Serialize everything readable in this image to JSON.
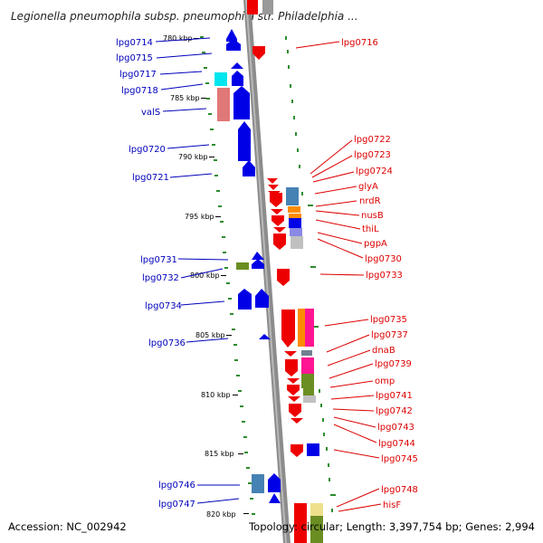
{
  "title": "Legionella pneumophila subsp. pneumophila str. Philadelphia ...",
  "footer": {
    "accession": "Accession: NC_002942",
    "topology": "Topology: circular; Length: 3,397,754 bp; Genes: 2,994"
  },
  "colors": {
    "forward_gene": "#0000e6",
    "reverse_gene": "#ee0000",
    "forward_label": "#0000bb",
    "reverse_label": "#dd0000",
    "backbone": "#888888",
    "tick": "#2e8b2e"
  },
  "scale_labels": [
    "780 kbp",
    "785 kbp",
    "790 kbp",
    "795 kbp",
    "800 kbp",
    "805 kbp",
    "810 kbp",
    "815 kbp",
    "820 kbp"
  ],
  "left_genes": [
    "lpg0714",
    "lpg0715",
    "lpg0717",
    "lpg0718",
    "valS",
    "lpg0720",
    "lpg0721",
    "lpg0731",
    "lpg0732",
    "lpg0734",
    "lpg0736",
    "lpg0746",
    "lpg0747"
  ],
  "right_genes": [
    "lpg0716",
    "lpg0722",
    "lpg0723",
    "lpg0724",
    "glyA",
    "nrdR",
    "nusB",
    "thiL",
    "pgpA",
    "lpg0730",
    "lpg0733",
    "lpg0735",
    "lpg0737",
    "dnaB",
    "lpg0739",
    "omp",
    "lpg0741",
    "lpg0742",
    "lpg0743",
    "lpg0744",
    "lpg0745",
    "lpg0748",
    "hisF"
  ]
}
